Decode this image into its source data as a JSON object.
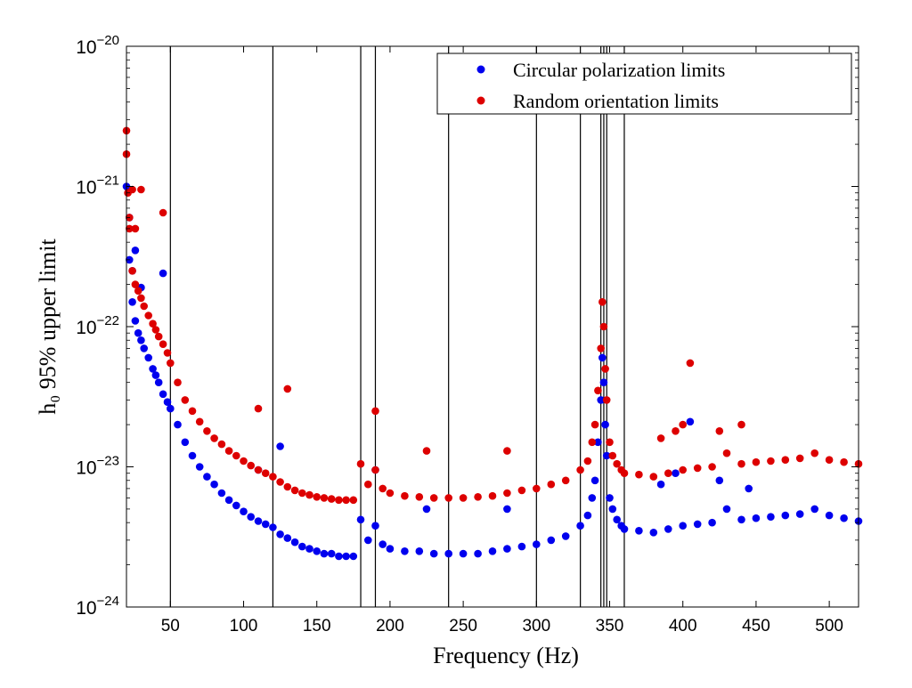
{
  "chart_data": {
    "type": "scatter",
    "title": "",
    "xlabel": "Frequency (Hz)",
    "ylabel": "h₀ 95% upper limit",
    "xlim": [
      20,
      520
    ],
    "ylim": [
      1e-24,
      1e-20
    ],
    "yscale": "log",
    "grid": false,
    "legend_position": "top-right",
    "x_ticks": [
      50,
      100,
      150,
      200,
      250,
      300,
      350,
      400,
      450,
      500
    ],
    "x_tick_labels": [
      "50",
      "100",
      "150",
      "200",
      "250",
      "300",
      "350",
      "400",
      "450",
      "500"
    ],
    "y_ticks": [
      1e-24,
      1e-23,
      1e-22,
      1e-21,
      1e-20
    ],
    "y_tick_labels": [
      {
        "base": "10",
        "exp": "−24"
      },
      {
        "base": "10",
        "exp": "−23"
      },
      {
        "base": "10",
        "exp": "−22"
      },
      {
        "base": "10",
        "exp": "−21"
      },
      {
        "base": "10",
        "exp": "−20"
      }
    ],
    "vertical_lines_hz": [
      50,
      120,
      180,
      190,
      240,
      300,
      330,
      344,
      346,
      348,
      360
    ],
    "series": [
      {
        "name": "Circular polarization limits",
        "color": "#0000ee",
        "x": [
          20,
          22,
          24,
          26,
          28,
          30,
          32,
          35,
          38,
          40,
          42,
          45,
          48,
          50,
          55,
          60,
          65,
          70,
          75,
          80,
          85,
          90,
          95,
          100,
          105,
          110,
          115,
          120,
          125,
          130,
          135,
          140,
          145,
          150,
          155,
          160,
          165,
          170,
          175,
          180,
          185,
          190,
          195,
          200,
          210,
          220,
          230,
          240,
          250,
          260,
          270,
          280,
          290,
          300,
          310,
          320,
          330,
          335,
          338,
          340,
          342,
          344,
          345,
          346,
          347,
          348,
          350,
          352,
          355,
          358,
          360,
          370,
          380,
          390,
          400,
          410,
          420,
          430,
          440,
          450,
          460,
          470,
          480,
          490,
          500,
          510,
          520,
          22,
          24,
          26,
          30,
          45,
          110,
          125,
          190,
          225,
          280,
          385,
          395,
          405,
          425,
          445
        ],
        "y": [
          1e-21,
          3e-22,
          1.5e-22,
          1.1e-22,
          9e-23,
          8e-23,
          7e-23,
          6e-23,
          5e-23,
          4.5e-23,
          4e-23,
          3.3e-23,
          2.9e-23,
          2.6e-23,
          2e-23,
          1.5e-23,
          1.2e-23,
          1e-23,
          8.5e-24,
          7.5e-24,
          6.5e-24,
          5.8e-24,
          5.3e-24,
          4.8e-24,
          4.4e-24,
          4.1e-24,
          3.9e-24,
          3.7e-24,
          3.3e-24,
          3.1e-24,
          2.9e-24,
          2.7e-24,
          2.6e-24,
          2.5e-24,
          2.4e-24,
          2.4e-24,
          2.3e-24,
          2.3e-24,
          2.3e-24,
          4.2e-24,
          3e-24,
          3.8e-24,
          2.8e-24,
          2.6e-24,
          2.5e-24,
          2.5e-24,
          2.4e-24,
          2.4e-24,
          2.4e-24,
          2.4e-24,
          2.5e-24,
          2.6e-24,
          2.7e-24,
          2.8e-24,
          3e-24,
          3.2e-24,
          3.8e-24,
          4.5e-24,
          6e-24,
          8e-24,
          1.5e-23,
          3e-23,
          6e-23,
          4e-23,
          2e-23,
          1.2e-23,
          6e-24,
          5e-24,
          4.2e-24,
          3.8e-24,
          3.6e-24,
          3.5e-24,
          3.4e-24,
          3.6e-24,
          3.8e-24,
          3.9e-24,
          4e-24,
          5e-24,
          4.2e-24,
          4.3e-24,
          4.4e-24,
          4.5e-24,
          4.6e-24,
          5e-24,
          4.5e-24,
          4.3e-24,
          4.1e-24,
          6e-22,
          2.5e-22,
          3.5e-22,
          1.9e-22,
          2.4e-22,
          9.5e-24,
          1.4e-23,
          9.5e-24,
          5e-24,
          5e-24,
          7.5e-24,
          9e-24,
          2.1e-23,
          8e-24,
          7e-24
        ]
      },
      {
        "name": "Random orientation limits",
        "color": "#dd0000",
        "x": [
          20,
          22,
          24,
          26,
          28,
          30,
          32,
          35,
          38,
          40,
          42,
          45,
          48,
          50,
          55,
          60,
          65,
          70,
          75,
          80,
          85,
          90,
          95,
          100,
          105,
          110,
          115,
          120,
          125,
          130,
          135,
          140,
          145,
          150,
          155,
          160,
          165,
          170,
          175,
          180,
          185,
          190,
          195,
          200,
          210,
          220,
          230,
          240,
          250,
          260,
          270,
          280,
          290,
          300,
          310,
          320,
          330,
          335,
          338,
          340,
          342,
          344,
          345,
          346,
          347,
          348,
          350,
          352,
          355,
          358,
          360,
          370,
          380,
          390,
          400,
          410,
          420,
          430,
          440,
          450,
          460,
          470,
          480,
          490,
          500,
          510,
          520,
          20,
          21,
          22,
          24,
          26,
          30,
          45,
          110,
          130,
          190,
          225,
          280,
          385,
          395,
          400,
          405,
          425,
          440
        ],
        "y": [
          2.5e-21,
          5e-22,
          2.5e-22,
          2e-22,
          1.8e-22,
          1.6e-22,
          1.4e-22,
          1.2e-22,
          1.05e-22,
          9.5e-23,
          8.5e-23,
          7.5e-23,
          6.5e-23,
          5.5e-23,
          4e-23,
          3e-23,
          2.5e-23,
          2.1e-23,
          1.8e-23,
          1.6e-23,
          1.45e-23,
          1.3e-23,
          1.2e-23,
          1.1e-23,
          1.02e-23,
          9.5e-24,
          9e-24,
          8.5e-24,
          7.8e-24,
          7.2e-24,
          6.8e-24,
          6.5e-24,
          6.3e-24,
          6.1e-24,
          6e-24,
          5.9e-24,
          5.8e-24,
          5.8e-24,
          5.8e-24,
          1.05e-23,
          7.5e-24,
          9.5e-24,
          7e-24,
          6.5e-24,
          6.2e-24,
          6.1e-24,
          6e-24,
          6e-24,
          6e-24,
          6.1e-24,
          6.2e-24,
          6.5e-24,
          6.8e-24,
          7e-24,
          7.5e-24,
          8e-24,
          9.5e-24,
          1.1e-23,
          1.5e-23,
          2e-23,
          3.5e-23,
          7e-23,
          1.5e-22,
          1e-22,
          5e-23,
          3e-23,
          1.5e-23,
          1.2e-23,
          1.05e-23,
          9.5e-24,
          9e-24,
          8.8e-24,
          8.5e-24,
          9e-24,
          9.5e-24,
          9.8e-24,
          1e-23,
          1.25e-23,
          1.05e-23,
          1.08e-23,
          1.1e-23,
          1.12e-23,
          1.15e-23,
          1.25e-23,
          1.12e-23,
          1.08e-23,
          1.05e-23,
          1.7e-21,
          9e-22,
          6e-22,
          9.5e-22,
          5e-22,
          9.5e-22,
          6.5e-22,
          2.6e-23,
          3.6e-23,
          2.5e-23,
          1.3e-23,
          1.3e-23,
          1.6e-23,
          1.8e-23,
          2e-23,
          5.5e-23,
          1.8e-23,
          2e-23
        ]
      }
    ]
  }
}
